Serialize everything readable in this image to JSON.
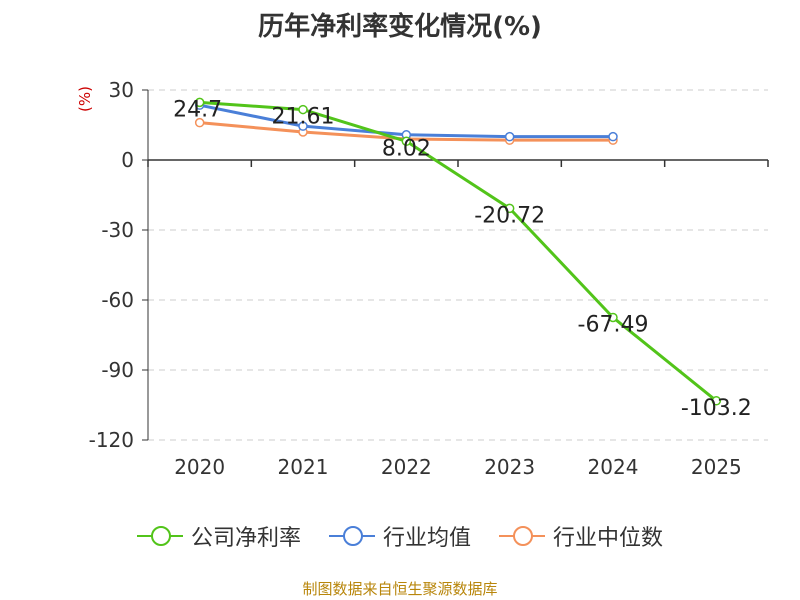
{
  "title": "历年净利率变化情况(%)",
  "unit_label": "(%)",
  "source": "制图数据来自恒生聚源数据库",
  "chart_data": {
    "type": "line",
    "categories": [
      "2020",
      "2021",
      "2022",
      "2023",
      "2024",
      "2025"
    ],
    "ylim": [
      -120,
      30
    ],
    "yticks": [
      30,
      0,
      -30,
      -60,
      -90,
      -120
    ],
    "grid": true,
    "legend_position": "bottom",
    "series": [
      {
        "name": "公司净利率",
        "color": "#52c41a",
        "values": [
          24.7,
          21.61,
          8.02,
          -20.72,
          -67.49,
          -103.2
        ],
        "labels": [
          "24.7",
          "21.61",
          "8.02",
          "-20.72",
          "-67.49",
          "-103.2"
        ]
      },
      {
        "name": "行业均值",
        "color": "#4a7fd8",
        "values": [
          23.5,
          14.5,
          10.8,
          10.0,
          10.0,
          null
        ]
      },
      {
        "name": "行业中位数",
        "color": "#f4915a",
        "values": [
          16.0,
          12.0,
          9.0,
          8.5,
          8.5,
          null
        ]
      }
    ]
  }
}
